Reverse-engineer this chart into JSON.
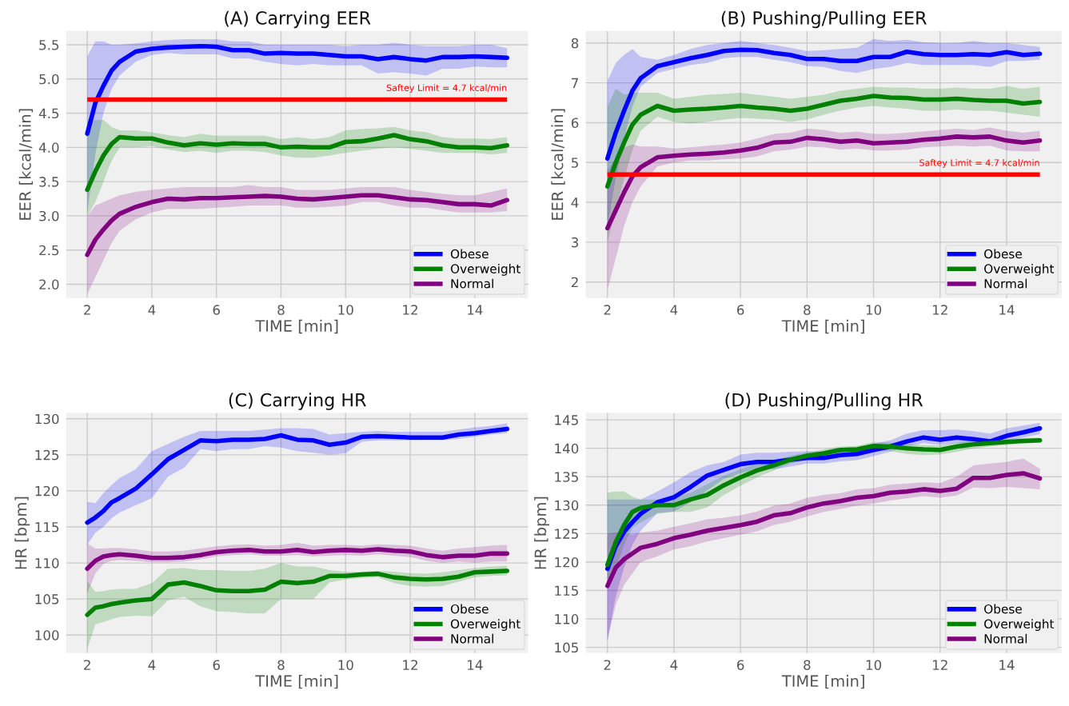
{
  "chart_data": [
    {
      "type": "line",
      "title": "(A) Carrying EER",
      "xlabel": "TIME [min]",
      "ylabel": "EER [kcal/min]",
      "legend": "bottom right",
      "grid": true,
      "x": [
        2,
        2.25,
        2.5,
        2.75,
        3,
        3.5,
        4,
        4.5,
        5,
        5.5,
        6,
        6.5,
        7,
        7.5,
        8,
        8.5,
        9,
        9.5,
        10,
        10.5,
        11,
        11.5,
        12,
        12.5,
        13,
        13.5,
        14,
        14.5,
        15
      ],
      "xlim": [
        1.35,
        15.65
      ],
      "xticks": [
        2,
        4,
        6,
        8,
        10,
        12,
        14
      ],
      "ylim": [
        1.8,
        5.7
      ],
      "yticks": [
        {
          "value": 2,
          "label": "2.0"
        },
        {
          "value": 2.5,
          "label": "2.5"
        },
        {
          "value": 3,
          "label": "3.0"
        },
        {
          "value": 3.5,
          "label": "3.5"
        },
        {
          "value": 4,
          "label": "4.0"
        },
        {
          "value": 4.5,
          "label": "4.5"
        },
        {
          "value": 5,
          "label": "5.0"
        },
        {
          "value": 5.5,
          "label": "5.5"
        }
      ],
      "ref_lines": [
        {
          "axis": "y",
          "value": 4.7,
          "label": "Saftey Limit = 4.7 kcal/min",
          "color": "#ff0000"
        }
      ],
      "series": [
        {
          "name": "Obese",
          "color": "#0000ff",
          "values": [
            4.2,
            4.65,
            4.9,
            5.12,
            5.25,
            5.4,
            5.44,
            5.46,
            5.47,
            5.48,
            5.47,
            5.42,
            5.42,
            5.37,
            5.38,
            5.37,
            5.37,
            5.35,
            5.33,
            5.33,
            5.29,
            5.32,
            5.29,
            5.27,
            5.32,
            5.32,
            5.33,
            5.32,
            5.31
          ],
          "lower": [
            3.05,
            3.9,
            4.5,
            4.85,
            5.05,
            5.25,
            5.35,
            5.38,
            5.36,
            5.36,
            5.36,
            5.3,
            5.3,
            5.25,
            5.22,
            5.2,
            5.22,
            5.2,
            5.2,
            5.2,
            5.08,
            5.1,
            5.08,
            5.05,
            5.15,
            5.15,
            5.18,
            5.17,
            5.17
          ],
          "upper": [
            5.33,
            5.55,
            5.55,
            5.5,
            5.5,
            5.52,
            5.55,
            5.57,
            5.58,
            5.58,
            5.58,
            5.55,
            5.55,
            5.5,
            5.5,
            5.5,
            5.5,
            5.5,
            5.48,
            5.5,
            5.5,
            5.53,
            5.5,
            5.48,
            5.48,
            5.48,
            5.5,
            5.5,
            5.45
          ]
        },
        {
          "name": "Overweight",
          "color": "#008000",
          "values": [
            3.38,
            3.65,
            3.88,
            4.05,
            4.15,
            4.13,
            4.13,
            4.07,
            4.03,
            4.06,
            4.04,
            4.06,
            4.05,
            4.05,
            4.0,
            4.01,
            4.0,
            4.0,
            4.08,
            4.09,
            4.13,
            4.18,
            4.12,
            4.09,
            4.03,
            4.0,
            4.0,
            3.99,
            4.03
          ],
          "lower": [
            3.0,
            3.2,
            3.5,
            3.8,
            4.0,
            4.0,
            4.02,
            3.97,
            3.93,
            3.95,
            3.92,
            3.95,
            3.95,
            3.93,
            3.88,
            3.85,
            3.85,
            3.88,
            3.92,
            3.95,
            3.98,
            4.0,
            3.98,
            3.95,
            3.92,
            3.92,
            3.92,
            3.9,
            3.92
          ],
          "upper": [
            4.38,
            4.4,
            4.4,
            4.3,
            4.25,
            4.25,
            4.22,
            4.18,
            4.15,
            4.2,
            4.17,
            4.17,
            4.17,
            4.17,
            4.12,
            4.15,
            4.12,
            4.15,
            4.25,
            4.27,
            4.28,
            4.3,
            4.25,
            4.22,
            4.15,
            4.13,
            4.13,
            4.12,
            4.15
          ]
        },
        {
          "name": "Normal",
          "color": "#800080",
          "values": [
            2.43,
            2.65,
            2.8,
            2.93,
            3.03,
            3.13,
            3.2,
            3.25,
            3.24,
            3.26,
            3.26,
            3.27,
            3.28,
            3.29,
            3.28,
            3.25,
            3.24,
            3.26,
            3.28,
            3.3,
            3.3,
            3.27,
            3.24,
            3.23,
            3.2,
            3.17,
            3.17,
            3.15,
            3.23
          ],
          "lower": [
            1.85,
            2.1,
            2.35,
            2.6,
            2.78,
            2.95,
            3.05,
            3.1,
            3.1,
            3.1,
            3.12,
            3.13,
            3.15,
            3.15,
            3.15,
            3.12,
            3.12,
            3.13,
            3.15,
            3.2,
            3.2,
            3.15,
            3.12,
            3.12,
            3.08,
            3.05,
            3.05,
            3.05,
            3.07
          ],
          "upper": [
            3.0,
            3.15,
            3.2,
            3.25,
            3.3,
            3.35,
            3.38,
            3.4,
            3.42,
            3.42,
            3.42,
            3.42,
            3.45,
            3.42,
            3.42,
            3.38,
            3.38,
            3.38,
            3.4,
            3.42,
            3.42,
            3.42,
            3.38,
            3.35,
            3.32,
            3.3,
            3.3,
            3.35,
            3.4
          ]
        }
      ]
    },
    {
      "type": "line",
      "title": "(B) Pushing/Pulling EER",
      "xlabel": "TIME [min]",
      "ylabel": "EER [kcal/min]",
      "legend": "bottom right",
      "grid": true,
      "x": [
        2,
        2.25,
        2.5,
        2.75,
        3,
        3.5,
        4,
        4.5,
        5,
        5.5,
        6,
        6.5,
        7,
        7.5,
        8,
        8.5,
        9,
        9.5,
        10,
        10.5,
        11,
        11.5,
        12,
        12.5,
        13,
        13.5,
        14,
        14.5,
        15
      ],
      "xlim": [
        1.35,
        15.65
      ],
      "xticks": [
        2,
        4,
        6,
        8,
        10,
        12,
        14
      ],
      "ylim": [
        1.6,
        8.3
      ],
      "yticks": [
        2,
        3,
        4,
        5,
        6,
        7,
        8
      ],
      "ref_lines": [
        {
          "axis": "y",
          "value": 4.7,
          "label": "Saftey Limit = 4.7 kcal/min",
          "color": "#ff0000"
        }
      ],
      "series": [
        {
          "name": "Obese",
          "color": "#0000ff",
          "values": [
            5.1,
            5.75,
            6.3,
            6.8,
            7.12,
            7.42,
            7.52,
            7.62,
            7.7,
            7.8,
            7.83,
            7.82,
            7.75,
            7.7,
            7.6,
            7.6,
            7.55,
            7.55,
            7.65,
            7.65,
            7.78,
            7.72,
            7.7,
            7.7,
            7.72,
            7.7,
            7.77,
            7.7,
            7.73
          ],
          "lower": [
            3.4,
            4.6,
            5.6,
            6.4,
            6.9,
            7.25,
            7.35,
            7.45,
            7.5,
            7.62,
            7.65,
            7.65,
            7.58,
            7.52,
            7.42,
            7.4,
            7.3,
            7.25,
            7.35,
            7.4,
            7.5,
            7.45,
            7.45,
            7.45,
            7.45,
            7.4,
            7.55,
            7.55,
            7.58
          ],
          "upper": [
            7.05,
            7.5,
            7.7,
            7.85,
            7.65,
            7.58,
            7.7,
            7.85,
            7.95,
            8.0,
            8.05,
            8.0,
            7.95,
            7.88,
            7.8,
            7.82,
            7.85,
            7.88,
            8.1,
            8.05,
            8.08,
            8.02,
            8.0,
            8.0,
            8.05,
            8.0,
            8.0,
            7.95,
            7.9
          ]
        },
        {
          "name": "Overweight",
          "color": "#008000",
          "values": [
            4.4,
            5.0,
            5.5,
            5.95,
            6.2,
            6.42,
            6.3,
            6.33,
            6.35,
            6.38,
            6.42,
            6.38,
            6.35,
            6.3,
            6.35,
            6.45,
            6.55,
            6.6,
            6.67,
            6.63,
            6.62,
            6.58,
            6.58,
            6.6,
            6.57,
            6.55,
            6.55,
            6.48,
            6.52
          ],
          "lower": [
            3.0,
            3.8,
            4.6,
            5.3,
            5.8,
            6.15,
            6.02,
            5.98,
            6.02,
            6.08,
            6.12,
            6.1,
            6.08,
            6.02,
            6.08,
            6.2,
            6.3,
            6.38,
            6.42,
            6.38,
            6.35,
            6.3,
            6.3,
            6.33,
            6.3,
            6.3,
            6.25,
            6.2,
            6.15
          ],
          "upper": [
            6.4,
            6.85,
            6.7,
            6.75,
            6.75,
            6.75,
            6.6,
            6.65,
            6.7,
            6.72,
            6.75,
            6.7,
            6.65,
            6.6,
            6.65,
            6.7,
            6.8,
            6.85,
            6.9,
            6.88,
            6.88,
            6.85,
            6.85,
            6.88,
            6.85,
            6.85,
            6.92,
            6.85,
            6.9
          ]
        },
        {
          "name": "Normal",
          "color": "#800080",
          "values": [
            3.35,
            3.8,
            4.25,
            4.65,
            4.88,
            5.13,
            5.17,
            5.2,
            5.22,
            5.25,
            5.3,
            5.37,
            5.5,
            5.52,
            5.62,
            5.58,
            5.52,
            5.55,
            5.48,
            5.5,
            5.52,
            5.57,
            5.6,
            5.65,
            5.63,
            5.65,
            5.55,
            5.5,
            5.55
          ],
          "lower": [
            1.8,
            2.6,
            3.4,
            4.0,
            4.4,
            4.9,
            5.0,
            5.05,
            5.05,
            5.08,
            5.1,
            5.15,
            5.28,
            5.32,
            5.4,
            5.38,
            5.32,
            5.35,
            5.3,
            5.3,
            5.32,
            5.38,
            5.4,
            5.42,
            5.4,
            5.42,
            5.3,
            5.28,
            5.28
          ],
          "upper": [
            4.8,
            5.1,
            5.38,
            5.45,
            5.4,
            5.4,
            5.35,
            5.38,
            5.42,
            5.45,
            5.5,
            5.6,
            5.72,
            5.75,
            5.85,
            5.82,
            5.75,
            5.78,
            5.72,
            5.72,
            5.75,
            5.78,
            5.82,
            5.85,
            5.82,
            5.88,
            5.8,
            5.75,
            5.8
          ]
        }
      ]
    },
    {
      "type": "line",
      "title": "(C) Carrying HR",
      "xlabel": "TIME [min]",
      "ylabel": "HR [bpm]",
      "legend": "bottom right",
      "grid": true,
      "x": [
        2,
        2.25,
        2.5,
        2.75,
        3,
        3.5,
        4,
        4.5,
        5,
        5.5,
        6,
        6.5,
        7,
        7.5,
        8,
        8.5,
        9,
        9.5,
        10,
        10.5,
        11,
        11.5,
        12,
        12.5,
        13,
        13.5,
        14,
        14.5,
        15
      ],
      "xlim": [
        1.35,
        15.65
      ],
      "xticks": [
        2,
        4,
        6,
        8,
        10,
        12,
        14
      ],
      "ylim": [
        97.5,
        130.8
      ],
      "yticks": [
        100,
        105,
        110,
        115,
        120,
        125,
        130
      ],
      "series": [
        {
          "name": "Obese",
          "color": "#0000ff",
          "values": [
            115.6,
            116.3,
            117.2,
            118.4,
            119.0,
            120.3,
            122.3,
            124.4,
            125.7,
            127.0,
            126.9,
            127.1,
            127.1,
            127.2,
            127.7,
            127.1,
            127.0,
            126.4,
            126.7,
            127.5,
            127.6,
            127.5,
            127.4,
            127.4,
            127.4,
            127.8,
            128.0,
            128.3,
            128.6
          ],
          "lower": [
            112.5,
            114.2,
            115.0,
            116.2,
            117.0,
            118.0,
            119.0,
            122.0,
            123.2,
            125.8,
            125.5,
            125.8,
            125.8,
            126.2,
            126.0,
            125.5,
            125.3,
            125.0,
            125.2,
            126.8,
            127.0,
            127.0,
            127.0,
            127.0,
            127.0,
            127.2,
            127.5,
            127.8,
            128.0
          ],
          "upper": [
            118.5,
            118.3,
            119.7,
            120.8,
            121.8,
            123.0,
            125.5,
            126.5,
            127.5,
            128.3,
            128.3,
            128.3,
            128.3,
            128.5,
            128.7,
            128.7,
            128.6,
            127.8,
            128.0,
            128.2,
            128.3,
            128.2,
            128.2,
            128.2,
            128.2,
            128.5,
            128.8,
            129.0,
            129.4
          ]
        },
        {
          "name": "Overweight",
          "color": "#008000",
          "values": [
            102.8,
            103.8,
            104.0,
            104.3,
            104.5,
            104.8,
            105.0,
            107.0,
            107.3,
            106.8,
            106.2,
            106.1,
            106.1,
            106.3,
            107.4,
            107.2,
            107.4,
            108.2,
            108.2,
            108.4,
            108.5,
            108.0,
            107.8,
            107.7,
            107.8,
            108.1,
            108.7,
            108.8,
            108.9
          ],
          "lower": [
            98.0,
            101.5,
            101.8,
            102.2,
            102.5,
            102.7,
            102.6,
            104.8,
            105.3,
            104.0,
            103.3,
            103.2,
            103.0,
            103.0,
            105.0,
            105.0,
            105.0,
            107.3,
            107.7,
            107.9,
            108.0,
            107.2,
            106.8,
            106.7,
            106.8,
            107.4,
            108.0,
            108.2,
            108.3
          ],
          "upper": [
            107.5,
            106.0,
            106.1,
            106.3,
            106.4,
            106.4,
            107.2,
            109.2,
            109.3,
            109.0,
            109.0,
            108.9,
            108.9,
            109.2,
            110.0,
            109.5,
            109.5,
            109.0,
            108.8,
            108.8,
            108.9,
            108.8,
            108.6,
            108.5,
            108.7,
            109.0,
            109.3,
            109.5,
            109.6
          ]
        },
        {
          "name": "Normal",
          "color": "#800080",
          "values": [
            109.2,
            110.3,
            110.9,
            111.1,
            111.2,
            111.0,
            110.7,
            110.7,
            110.8,
            111.1,
            111.5,
            111.7,
            111.8,
            111.6,
            111.6,
            111.8,
            111.5,
            111.7,
            111.8,
            111.7,
            111.9,
            111.7,
            111.6,
            111.1,
            110.8,
            111.0,
            111.0,
            111.3,
            111.3
          ],
          "lower": [
            105.8,
            108.5,
            109.9,
            110.3,
            110.4,
            110.3,
            110.1,
            110.1,
            110.2,
            110.5,
            110.9,
            111.1,
            111.2,
            111.0,
            111.0,
            111.1,
            110.9,
            111.0,
            111.1,
            111.0,
            111.2,
            111.0,
            110.8,
            110.3,
            110.0,
            110.2,
            110.0,
            110.2,
            110.2
          ],
          "upper": [
            112.7,
            112.0,
            112.0,
            112.1,
            112.1,
            111.9,
            111.6,
            111.6,
            111.7,
            112.0,
            112.3,
            112.5,
            112.6,
            112.4,
            112.5,
            112.8,
            112.4,
            112.5,
            112.5,
            112.4,
            112.6,
            112.5,
            112.4,
            112.0,
            111.7,
            112.0,
            112.2,
            112.4,
            112.5
          ]
        }
      ]
    },
    {
      "type": "line",
      "title": "(D) Pushing/Pulling HR",
      "xlabel": "TIME [min]",
      "ylabel": "HR [bpm]",
      "legend": "bottom right",
      "grid": true,
      "x": [
        2,
        2.25,
        2.5,
        2.75,
        3,
        3.5,
        4,
        4.5,
        5,
        5.5,
        6,
        6.5,
        7,
        7.5,
        8,
        8.5,
        9,
        9.5,
        10,
        10.5,
        11,
        11.5,
        12,
        12.5,
        13,
        13.5,
        14,
        14.5,
        15
      ],
      "xlim": [
        1.35,
        15.65
      ],
      "xticks": [
        2,
        4,
        6,
        8,
        10,
        12,
        14
      ],
      "ylim": [
        104,
        146.2
      ],
      "yticks": [
        105,
        110,
        115,
        120,
        125,
        130,
        135,
        140,
        145
      ],
      "series": [
        {
          "name": "Obese",
          "color": "#0000ff",
          "values": [
            118.8,
            122.8,
            125.3,
            127.0,
            128.5,
            130.5,
            131.4,
            133.2,
            135.2,
            136.2,
            137.2,
            137.6,
            137.6,
            138.0,
            138.3,
            138.3,
            138.8,
            139.0,
            139.7,
            140.3,
            141.2,
            141.9,
            141.5,
            141.9,
            141.6,
            141.2,
            142.2,
            142.8,
            143.5
          ],
          "lower": [
            106,
            114,
            119,
            123,
            125.5,
            128.6,
            128.9,
            130.5,
            132.6,
            134.6,
            135.6,
            136.4,
            136.3,
            136.8,
            137.3,
            137.3,
            137.7,
            137.9,
            138.6,
            139.4,
            140.3,
            140.9,
            140.6,
            140.9,
            140.7,
            140.7,
            141.3,
            141.9,
            142.5
          ],
          "upper": [
            131,
            131,
            131,
            131,
            131,
            132.4,
            134,
            135.8,
            137,
            137.6,
            138.9,
            139.2,
            139.2,
            139.4,
            139.5,
            139.4,
            139.9,
            140.1,
            140.8,
            141.4,
            142.6,
            143.2,
            143.2,
            143.3,
            143,
            142.6,
            143.5,
            144,
            144.5
          ]
        },
        {
          "name": "Overweight",
          "color": "#008000",
          "values": [
            119.5,
            123.5,
            126.5,
            128.8,
            129.5,
            130.0,
            130.0,
            131.0,
            131.8,
            133.5,
            134.9,
            136.1,
            137.0,
            138.0,
            138.7,
            139.1,
            139.7,
            139.8,
            140.4,
            140.3,
            140.0,
            139.8,
            139.7,
            140.3,
            140.7,
            140.9,
            141.1,
            141.3,
            141.4
          ],
          "lower": [
            116,
            119,
            123,
            126,
            127,
            128.5,
            128.8,
            128.8,
            129.6,
            131.8,
            133.4,
            134.9,
            136.1,
            137.3,
            138.0,
            138.4,
            139.0,
            139.1,
            139.7,
            139.5,
            139.0,
            138.8,
            138.9,
            139.4,
            140.0,
            140.3,
            140.6,
            140.8,
            141.0
          ],
          "upper": [
            132.2,
            132.4,
            132.4,
            131.5,
            131.0,
            131.0,
            131.2,
            132.2,
            133.7,
            135.2,
            136.3,
            137.3,
            137.9,
            138.7,
            139.3,
            139.8,
            140.3,
            140.4,
            141.1,
            141.0,
            140.8,
            140.6,
            140.5,
            141.0,
            141.4,
            141.5,
            141.6,
            141.8,
            141.9
          ]
        },
        {
          "name": "Normal",
          "color": "#800080",
          "values": [
            115.8,
            119.0,
            120.5,
            121.5,
            122.5,
            123.2,
            124.2,
            124.8,
            125.5,
            126.0,
            126.5,
            127.1,
            128.2,
            128.6,
            129.6,
            130.3,
            130.7,
            131.3,
            131.6,
            132.2,
            132.4,
            132.8,
            132.5,
            132.9,
            134.8,
            134.8,
            135.3,
            135.6,
            134.7
          ],
          "lower": [
            106.5,
            112.5,
            116,
            118,
            120,
            121,
            122.2,
            122.8,
            123.6,
            124.2,
            124.8,
            125.4,
            126.5,
            127.1,
            128.0,
            128.8,
            129.3,
            129.9,
            130.3,
            130.8,
            131.2,
            131.6,
            131.3,
            131.7,
            133.1,
            133.0,
            133.2,
            133.0,
            132.8
          ],
          "upper": [
            125,
            125.2,
            125,
            124.8,
            125.2,
            125.5,
            126.2,
            126.8,
            127.5,
            127.8,
            128.2,
            128.9,
            129.9,
            130.3,
            131.3,
            131.8,
            132.1,
            132.8,
            133.0,
            133.6,
            133.8,
            134.0,
            133.9,
            135.0,
            137.0,
            137.3,
            137.6,
            138.2,
            136.4
          ]
        }
      ]
    }
  ]
}
